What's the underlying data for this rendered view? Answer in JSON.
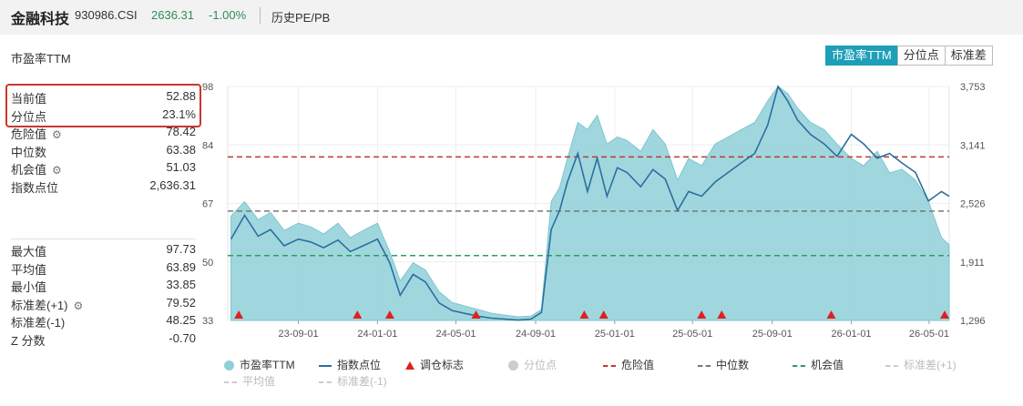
{
  "header": {
    "name": "金融科技",
    "code": "930986.CSI",
    "price": "2636.31",
    "change": "-1.00%",
    "link": "历史PE/PB"
  },
  "panel": {
    "title": "市盈率TTM",
    "tabs": [
      {
        "label": "市盈率TTM",
        "active": true
      },
      {
        "label": "分位点",
        "active": false
      },
      {
        "label": "标准差",
        "active": false
      }
    ]
  },
  "stats_top": [
    {
      "label": "当前值",
      "value": "52.88",
      "gear": false
    },
    {
      "label": "分位点",
      "value": "23.1%",
      "gear": false
    },
    {
      "label": "危险值",
      "value": "78.42",
      "gear": true
    },
    {
      "label": "中位数",
      "value": "63.38",
      "gear": false
    },
    {
      "label": "机会值",
      "value": "51.03",
      "gear": true
    },
    {
      "label": "指数点位",
      "value": "2,636.31",
      "gear": false
    }
  ],
  "stats_bottom": [
    {
      "label": "最大值",
      "value": "97.73",
      "gear": false
    },
    {
      "label": "平均值",
      "value": "63.89",
      "gear": false
    },
    {
      "label": "最小值",
      "value": "33.85",
      "gear": false
    },
    {
      "label": "标准差(+1)",
      "value": "79.52",
      "gear": true
    },
    {
      "label": "标准差(-1)",
      "value": "48.25",
      "gear": false
    },
    {
      "label": "Z 分数",
      "value": "-0.70",
      "gear": false
    }
  ],
  "colors": {
    "area": "#8fd0d8",
    "line": "#2b6f9e",
    "danger": "#c0392b",
    "median": "#777777",
    "chance": "#2e9e5b",
    "marker": "#e02020",
    "accent": "#1e9fb8"
  },
  "chart_data": {
    "type": "area",
    "left_axis_ticks": [
      "98",
      "84",
      "67",
      "50",
      "33"
    ],
    "right_axis_ticks": [
      "3,753",
      "3,141",
      "2,526",
      "1,911",
      "1,296"
    ],
    "x_ticks": [
      "23-09-01",
      "24-01-01",
      "24-05-01",
      "24-09-01",
      "25-01-01",
      "25-05-01",
      "25-09-01",
      "26-01-01",
      "26-05-01"
    ],
    "ylim_left": [
      33,
      98
    ],
    "ylim_right": [
      1296,
      3753
    ],
    "reference_lines": {
      "danger": 78.42,
      "median": 63.38,
      "chance": 51.03
    },
    "series": [
      {
        "name": "市盈率TTM",
        "axis": "left",
        "x": [
          "2023-05-20",
          "2023-06-10",
          "2023-07-01",
          "2023-07-20",
          "2023-08-10",
          "2023-09-01",
          "2023-09-20",
          "2023-10-10",
          "2023-11-01",
          "2023-11-20",
          "2023-12-10",
          "2024-01-01",
          "2024-01-20",
          "2024-02-05",
          "2024-02-25",
          "2024-03-15",
          "2024-04-05",
          "2024-04-25",
          "2024-05-15",
          "2024-06-05",
          "2024-06-25",
          "2024-07-15",
          "2024-08-05",
          "2024-08-25",
          "2024-09-10",
          "2024-09-25",
          "2024-10-08",
          "2024-10-20",
          "2024-11-05",
          "2024-11-20",
          "2024-12-05",
          "2024-12-20",
          "2025-01-05",
          "2025-01-20",
          "2025-02-10",
          "2025-03-01",
          "2025-03-20",
          "2025-04-08",
          "2025-04-25",
          "2025-05-15",
          "2025-06-05",
          "2025-06-25",
          "2025-07-15",
          "2025-08-05",
          "2025-08-25",
          "2025-09-10",
          "2025-09-25",
          "2025-10-10",
          "2025-10-30",
          "2025-11-20",
          "2025-12-10",
          "2026-01-01",
          "2026-01-20",
          "2026-02-10",
          "2026-03-01",
          "2026-03-20",
          "2026-04-10",
          "2026-04-30",
          "2026-05-20",
          "2026-06-01"
        ],
        "values": [
          62,
          66,
          61,
          63,
          58,
          60,
          59,
          57,
          60,
          56,
          58,
          60,
          52,
          44,
          49,
          47,
          41,
          38,
          37,
          36,
          35,
          34.5,
          34,
          34.2,
          36,
          66,
          70,
          78,
          88,
          86,
          90,
          82,
          84,
          83,
          80,
          86,
          82,
          72,
          78,
          76,
          82,
          84,
          86,
          88,
          94,
          98,
          96,
          92,
          88,
          86,
          82,
          78,
          76,
          80,
          74,
          75,
          72,
          66,
          56,
          54
        ]
      },
      {
        "name": "指数点位",
        "axis": "right",
        "x": [
          "2023-05-20",
          "2023-06-10",
          "2023-07-01",
          "2023-07-20",
          "2023-08-10",
          "2023-09-01",
          "2023-09-20",
          "2023-10-10",
          "2023-11-01",
          "2023-11-20",
          "2023-12-10",
          "2024-01-01",
          "2024-01-20",
          "2024-02-05",
          "2024-02-25",
          "2024-03-15",
          "2024-04-05",
          "2024-04-25",
          "2024-05-15",
          "2024-06-05",
          "2024-06-25",
          "2024-07-15",
          "2024-08-05",
          "2024-08-25",
          "2024-09-10",
          "2024-09-25",
          "2024-10-08",
          "2024-10-20",
          "2024-11-05",
          "2024-11-20",
          "2024-12-05",
          "2024-12-20",
          "2025-01-05",
          "2025-01-20",
          "2025-02-10",
          "2025-03-01",
          "2025-03-20",
          "2025-04-08",
          "2025-04-25",
          "2025-05-15",
          "2025-06-05",
          "2025-06-25",
          "2025-07-15",
          "2025-08-05",
          "2025-08-25",
          "2025-09-10",
          "2025-09-25",
          "2025-10-10",
          "2025-10-30",
          "2025-11-20",
          "2025-12-10",
          "2026-01-01",
          "2026-01-20",
          "2026-02-10",
          "2026-03-01",
          "2026-03-20",
          "2026-04-10",
          "2026-04-30",
          "2026-05-20",
          "2026-06-01"
        ],
        "values": [
          2150,
          2400,
          2180,
          2250,
          2080,
          2150,
          2120,
          2060,
          2140,
          2020,
          2080,
          2150,
          1900,
          1560,
          1780,
          1700,
          1480,
          1400,
          1370,
          1340,
          1320,
          1310,
          1300,
          1310,
          1380,
          2250,
          2450,
          2750,
          3050,
          2650,
          3000,
          2600,
          2900,
          2850,
          2700,
          2880,
          2780,
          2450,
          2650,
          2600,
          2750,
          2850,
          2950,
          3050,
          3350,
          3753,
          3600,
          3400,
          3250,
          3150,
          3020,
          3250,
          3150,
          3000,
          3050,
          2950,
          2850,
          2550,
          2650,
          2600
        ]
      }
    ],
    "adjustment_markers": [
      "2023-06-01",
      "2023-12-01",
      "2024-01-20",
      "2024-06-01",
      "2024-11-15",
      "2024-12-15",
      "2025-05-15",
      "2025-06-15",
      "2025-12-01",
      "2026-05-25"
    ],
    "legend": [
      "市盈率TTM",
      "指数点位",
      "调仓标志",
      "分位点",
      "危险值",
      "中位数",
      "机会值",
      "标准差(+1)",
      "平均值",
      "标准差(-1)"
    ]
  }
}
